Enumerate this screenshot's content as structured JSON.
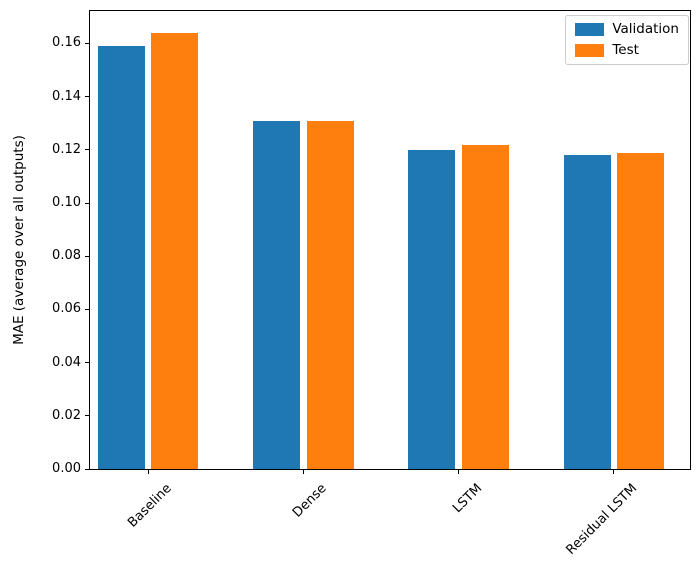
{
  "chart_data": {
    "type": "bar",
    "categories": [
      "Baseline",
      "Dense",
      "LSTM",
      "Residual LSTM"
    ],
    "series": [
      {
        "name": "Validation",
        "color": "#1f77b4",
        "values": [
          0.159,
          0.131,
          0.12,
          0.118
        ]
      },
      {
        "name": "Test",
        "color": "#ff7f0e",
        "values": [
          0.164,
          0.131,
          0.122,
          0.119
        ]
      }
    ],
    "title": "",
    "xlabel": "",
    "ylabel": "MAE (average over all outputs)",
    "yticks": [
      0.0,
      0.02,
      0.04,
      0.06,
      0.08,
      0.1,
      0.12,
      0.14,
      0.16
    ],
    "ytick_decimals": 2,
    "ylim": [
      0,
      0.1722
    ],
    "x_tick_rotation": 45,
    "grid": false,
    "legend": {
      "position": "upper right",
      "entries": [
        "Validation",
        "Test"
      ]
    }
  }
}
